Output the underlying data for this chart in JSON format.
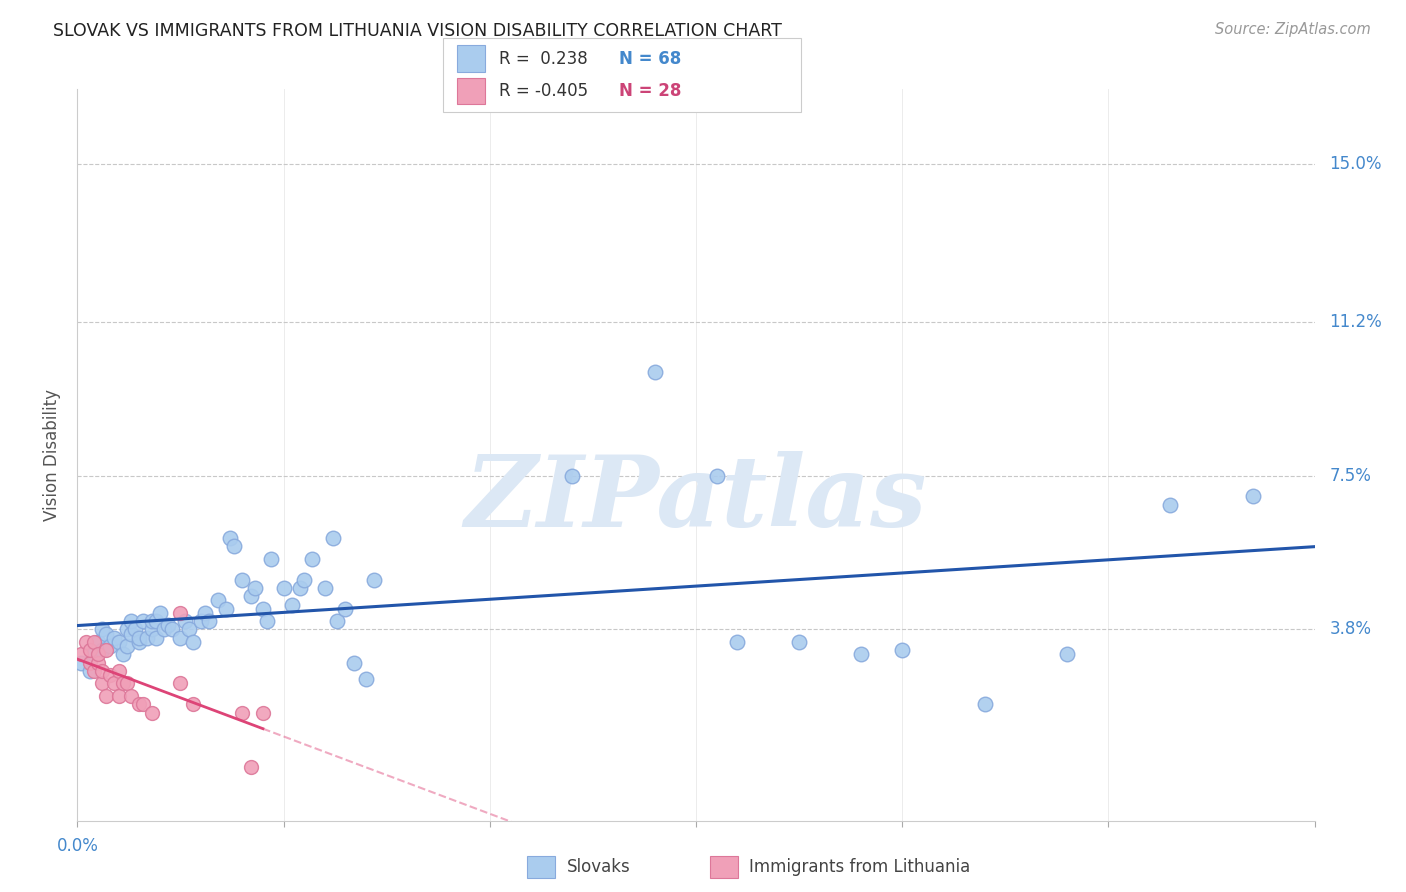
{
  "title": "SLOVAK VS IMMIGRANTS FROM LITHUANIA VISION DISABILITY CORRELATION CHART",
  "source": "Source: ZipAtlas.com",
  "ylabel": "Vision Disability",
  "xlim": [
    0.0,
    0.3
  ],
  "ylim": [
    -0.008,
    0.168
  ],
  "yticks": [
    0.038,
    0.075,
    0.112,
    0.15
  ],
  "ytick_labels": [
    "3.8%",
    "7.5%",
    "11.2%",
    "15.0%"
  ],
  "xticks": [
    0.0,
    0.05,
    0.1,
    0.15,
    0.2,
    0.25,
    0.3
  ],
  "background_color": "#ffffff",
  "grid_color": "#c8c8c8",
  "blue_color": "#aaccee",
  "blue_edge": "#88aadd",
  "pink_color": "#f0a0b8",
  "pink_edge": "#dd7799",
  "line_blue": "#2255aa",
  "line_pink": "#dd4477",
  "legend_R_blue": "0.238",
  "legend_N_blue": "68",
  "legend_R_pink": "-0.405",
  "legend_N_pink": "28",
  "legend_label_blue": "Slovaks",
  "legend_label_pink": "Immigrants from Lithuania",
  "blue_color_legend": "#4488cc",
  "pink_color_legend": "#cc4477",
  "blue_x": [
    0.001,
    0.003,
    0.004,
    0.005,
    0.006,
    0.006,
    0.007,
    0.008,
    0.009,
    0.01,
    0.011,
    0.012,
    0.012,
    0.013,
    0.013,
    0.014,
    0.015,
    0.015,
    0.016,
    0.017,
    0.018,
    0.018,
    0.019,
    0.019,
    0.02,
    0.021,
    0.022,
    0.023,
    0.025,
    0.026,
    0.027,
    0.028,
    0.03,
    0.031,
    0.032,
    0.034,
    0.036,
    0.037,
    0.038,
    0.04,
    0.042,
    0.043,
    0.045,
    0.046,
    0.047,
    0.05,
    0.052,
    0.054,
    0.055,
    0.057,
    0.06,
    0.062,
    0.063,
    0.065,
    0.067,
    0.07,
    0.072,
    0.12,
    0.14,
    0.155,
    0.16,
    0.175,
    0.19,
    0.2,
    0.22,
    0.24,
    0.265,
    0.285
  ],
  "blue_y": [
    0.03,
    0.028,
    0.032,
    0.035,
    0.033,
    0.038,
    0.037,
    0.034,
    0.036,
    0.035,
    0.032,
    0.034,
    0.038,
    0.037,
    0.04,
    0.038,
    0.035,
    0.036,
    0.04,
    0.036,
    0.038,
    0.04,
    0.036,
    0.04,
    0.042,
    0.038,
    0.039,
    0.038,
    0.036,
    0.04,
    0.038,
    0.035,
    0.04,
    0.042,
    0.04,
    0.045,
    0.043,
    0.06,
    0.058,
    0.05,
    0.046,
    0.048,
    0.043,
    0.04,
    0.055,
    0.048,
    0.044,
    0.048,
    0.05,
    0.055,
    0.048,
    0.06,
    0.04,
    0.043,
    0.03,
    0.026,
    0.05,
    0.075,
    0.1,
    0.075,
    0.035,
    0.035,
    0.032,
    0.033,
    0.02,
    0.032,
    0.068,
    0.07
  ],
  "pink_x": [
    0.001,
    0.002,
    0.003,
    0.003,
    0.004,
    0.004,
    0.005,
    0.005,
    0.006,
    0.006,
    0.007,
    0.007,
    0.008,
    0.009,
    0.01,
    0.01,
    0.011,
    0.012,
    0.013,
    0.015,
    0.016,
    0.018,
    0.025,
    0.025,
    0.028,
    0.04,
    0.042,
    0.045
  ],
  "pink_y": [
    0.032,
    0.035,
    0.03,
    0.033,
    0.028,
    0.035,
    0.03,
    0.032,
    0.025,
    0.028,
    0.022,
    0.033,
    0.027,
    0.025,
    0.022,
    0.028,
    0.025,
    0.025,
    0.022,
    0.02,
    0.02,
    0.018,
    0.042,
    0.025,
    0.02,
    0.018,
    0.005,
    0.018
  ]
}
